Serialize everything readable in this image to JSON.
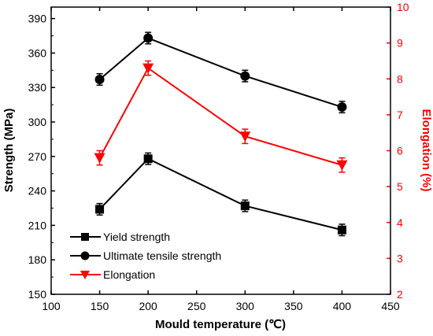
{
  "chart_data": {
    "type": "line",
    "title": "",
    "xlabel": "Mould temperature (℃)",
    "ylabel_left": "Strength (MPa)",
    "ylabel_right": "Elongation (%)",
    "xlim": [
      100,
      450
    ],
    "ylim_left": [
      150,
      400
    ],
    "ylim_right": [
      2,
      10
    ],
    "x_ticks": [
      100,
      150,
      200,
      250,
      300,
      350,
      400,
      450
    ],
    "y_left_ticks": [
      150,
      180,
      210,
      240,
      270,
      300,
      330,
      360,
      390
    ],
    "y_right_ticks": [
      2,
      3,
      4,
      5,
      6,
      7,
      8,
      9,
      10
    ],
    "x": [
      150,
      200,
      300,
      400
    ],
    "series": [
      {
        "name": "Yield strength",
        "axis": "left",
        "marker": "square",
        "color": "#000000",
        "values": [
          224,
          268,
          227,
          206
        ],
        "errors": [
          5,
          5,
          5,
          5
        ]
      },
      {
        "name": "Ultimate tensile strength",
        "axis": "left",
        "marker": "circle",
        "color": "#000000",
        "values": [
          337,
          373,
          340,
          313
        ],
        "errors": [
          5,
          5,
          5,
          5
        ]
      },
      {
        "name": "Elongation",
        "axis": "right",
        "marker": "triangle-down",
        "color": "#ff0000",
        "values": [
          5.8,
          8.3,
          6.4,
          5.6
        ],
        "errors": [
          0.2,
          0.2,
          0.2,
          0.2
        ]
      }
    ],
    "legend_position": "bottom-left",
    "grid": false
  }
}
